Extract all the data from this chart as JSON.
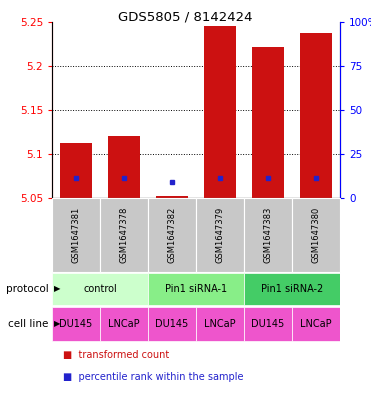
{
  "title": "GDS5805 / 8142424",
  "samples": [
    "GSM1647381",
    "GSM1647378",
    "GSM1647382",
    "GSM1647379",
    "GSM1647383",
    "GSM1647380"
  ],
  "red_bar_top": [
    5.113,
    5.12,
    5.052,
    5.245,
    5.222,
    5.238
  ],
  "red_bar_bottom": [
    5.05,
    5.05,
    5.05,
    5.05,
    5.05,
    5.05
  ],
  "blue_dot_y": [
    5.073,
    5.073,
    5.068,
    5.073,
    5.073,
    5.073
  ],
  "ylim": [
    5.05,
    5.25
  ],
  "yticks_left": [
    5.05,
    5.1,
    5.15,
    5.2,
    5.25
  ],
  "yticks_right": [
    0,
    25,
    50,
    75,
    100
  ],
  "yticks_right_labels": [
    "0",
    "25",
    "50",
    "75",
    "100%"
  ],
  "protocols": [
    {
      "label": "control",
      "cols": [
        0,
        1
      ],
      "color": "#ccffcc"
    },
    {
      "label": "Pin1 siRNA-1",
      "cols": [
        2,
        3
      ],
      "color": "#88ee88"
    },
    {
      "label": "Pin1 siRNA-2",
      "cols": [
        4,
        5
      ],
      "color": "#44cc66"
    }
  ],
  "cell_lines": [
    "DU145",
    "LNCaP",
    "DU145",
    "LNCaP",
    "DU145",
    "LNCaP"
  ],
  "cell_line_color": "#ee55cc",
  "bar_color": "#cc1111",
  "dot_color": "#2222cc",
  "background_color": "#ffffff"
}
